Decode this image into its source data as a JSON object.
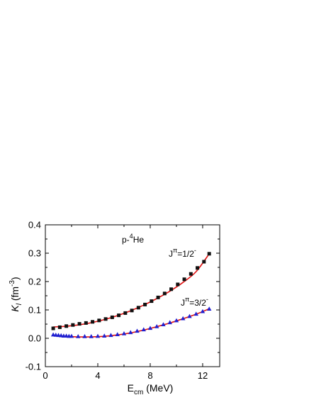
{
  "chart_data": {
    "type": "scatter",
    "xlim": [
      0,
      13.3
    ],
    "ylim": [
      -0.1,
      0.4
    ],
    "x_ticks": [
      "0",
      "4",
      "8",
      "12"
    ],
    "x_tick_values": [
      0,
      4,
      8,
      12
    ],
    "y_ticks": [
      "-0.1",
      "0.0",
      "0.1",
      "0.2",
      "0.3",
      "0.4"
    ],
    "y_tick_values": [
      -0.1,
      0.0,
      0.1,
      0.2,
      0.3,
      0.4
    ],
    "xlabel": {
      "main": "E",
      "sub": "cm",
      "rest": " (MeV)"
    },
    "ylabel": {
      "main": "K",
      "sub": "l",
      "rest": " (fm",
      "sup": "-3",
      "end": ")"
    },
    "annotation": {
      "pre": "p-",
      "sup": "4",
      "post": "He"
    },
    "line_color": "#e01010",
    "series": [
      {
        "label": {
          "pre": "J",
          "sup1": "π",
          "mid": "=1/2",
          "sup2": "-"
        },
        "marker": "square",
        "color": "#111111",
        "x": [
          0.6,
          1.1,
          1.6,
          2.1,
          2.6,
          3.1,
          3.6,
          4.1,
          4.6,
          5.1,
          5.6,
          6.1,
          6.6,
          7.1,
          7.6,
          8.1,
          8.6,
          9.1,
          9.6,
          10.1,
          10.6,
          11.1,
          11.6,
          12.1,
          12.5
        ],
        "y": [
          0.035,
          0.039,
          0.043,
          0.047,
          0.051,
          0.054,
          0.058,
          0.063,
          0.068,
          0.074,
          0.081,
          0.089,
          0.098,
          0.108,
          0.119,
          0.131,
          0.144,
          0.158,
          0.173,
          0.19,
          0.208,
          0.227,
          0.248,
          0.27,
          0.298
        ],
        "fit_x": [
          0.6,
          1.5,
          2.5,
          3.5,
          4.5,
          5.5,
          6.5,
          7.5,
          8.5,
          9.5,
          10.5,
          11.5,
          12.5
        ],
        "fit_y": [
          0.04,
          0.042,
          0.047,
          0.055,
          0.066,
          0.08,
          0.097,
          0.117,
          0.14,
          0.166,
          0.197,
          0.235,
          0.298
        ]
      },
      {
        "label": {
          "pre": "J",
          "sup1": "π",
          "mid": "=3/2",
          "sup2": "-"
        },
        "marker": "triangle",
        "color": "#2020d0",
        "x": [
          0.6,
          0.8,
          1.0,
          1.2,
          1.4,
          1.6,
          1.8,
          2.0,
          2.5,
          3.0,
          3.5,
          4.0,
          4.5,
          5.0,
          5.5,
          6.0,
          6.5,
          7.0,
          7.5,
          8.0,
          8.5,
          9.0,
          9.5,
          10.0,
          10.5,
          11.0,
          11.5,
          12.0,
          12.5
        ],
        "y": [
          0.013,
          0.012,
          0.011,
          0.01,
          0.009,
          0.009,
          0.008,
          0.008,
          0.007,
          0.007,
          0.007,
          0.008,
          0.009,
          0.011,
          0.014,
          0.017,
          0.021,
          0.026,
          0.031,
          0.036,
          0.042,
          0.049,
          0.056,
          0.063,
          0.07,
          0.078,
          0.086,
          0.095,
          0.104
        ],
        "fit_x": [
          0.6,
          1.5,
          2.5,
          3.5,
          4.5,
          5.5,
          6.5,
          7.5,
          8.5,
          9.5,
          10.5,
          11.5,
          12.5
        ],
        "fit_y": [
          0.01,
          0.007,
          0.005,
          0.005,
          0.007,
          0.012,
          0.019,
          0.029,
          0.041,
          0.054,
          0.069,
          0.085,
          0.104
        ]
      }
    ]
  }
}
